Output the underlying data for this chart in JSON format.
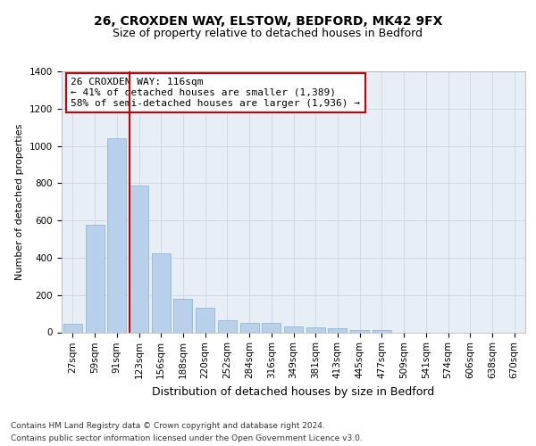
{
  "title_line1": "26, CROXDEN WAY, ELSTOW, BEDFORD, MK42 9FX",
  "title_line2": "Size of property relative to detached houses in Bedford",
  "xlabel": "Distribution of detached houses by size in Bedford",
  "ylabel": "Number of detached properties",
  "categories": [
    "27sqm",
    "59sqm",
    "91sqm",
    "123sqm",
    "156sqm",
    "188sqm",
    "220sqm",
    "252sqm",
    "284sqm",
    "316sqm",
    "349sqm",
    "381sqm",
    "413sqm",
    "445sqm",
    "477sqm",
    "509sqm",
    "541sqm",
    "574sqm",
    "606sqm",
    "638sqm",
    "670sqm"
  ],
  "values": [
    45,
    575,
    1040,
    785,
    425,
    180,
    130,
    65,
    50,
    50,
    30,
    28,
    20,
    13,
    13,
    0,
    0,
    0,
    0,
    0,
    0
  ],
  "bar_color": "#b8d0ea",
  "bar_edge_color": "#8fb8d8",
  "vline_color": "#cc0000",
  "annotation_text": "26 CROXDEN WAY: 116sqm\n← 41% of detached houses are smaller (1,389)\n58% of semi-detached houses are larger (1,936) →",
  "annotation_box_color": "#ffffff",
  "annotation_box_edge": "#cc0000",
  "ylim": [
    0,
    1400
  ],
  "yticks": [
    0,
    200,
    400,
    600,
    800,
    1000,
    1200,
    1400
  ],
  "grid_color": "#d0d8e8",
  "bg_color": "#e8eef6",
  "footer_line1": "Contains HM Land Registry data © Crown copyright and database right 2024.",
  "footer_line2": "Contains public sector information licensed under the Open Government Licence v3.0.",
  "title1_fontsize": 10,
  "title2_fontsize": 9,
  "xlabel_fontsize": 9,
  "ylabel_fontsize": 8,
  "tick_fontsize": 7.5,
  "annotation_fontsize": 8,
  "footer_fontsize": 6.5
}
